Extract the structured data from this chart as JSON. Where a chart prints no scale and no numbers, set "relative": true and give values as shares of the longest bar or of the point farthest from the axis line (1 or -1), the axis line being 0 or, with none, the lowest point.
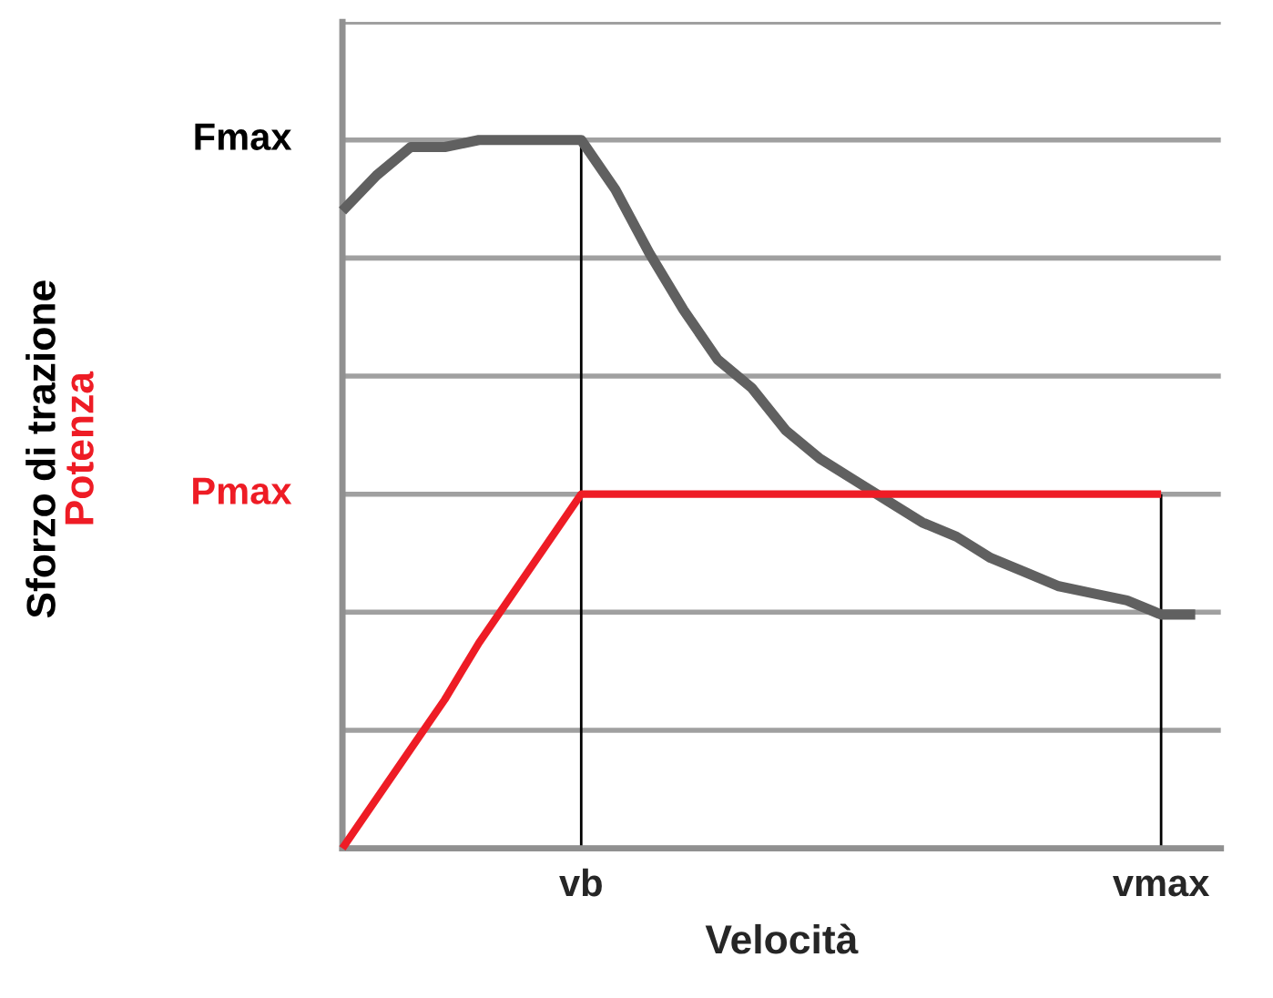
{
  "chart_data": {
    "type": "line",
    "relative": true,
    "xlabel": "Velocità",
    "categories": [
      null,
      null,
      null,
      null,
      null,
      null,
      null,
      "vb",
      null,
      null,
      null,
      null,
      null,
      null,
      null,
      null,
      null,
      null,
      null,
      null,
      null,
      null,
      null,
      null,
      "vmax",
      null
    ],
    "grid": true,
    "series": [
      {
        "color": "#606060",
        "values": [
          0.9,
          0.95,
          0.99,
          0.99,
          1.0,
          1.0,
          1.0,
          1.0,
          0.93,
          0.84,
          0.76,
          0.69,
          0.65,
          0.59,
          0.55,
          0.52,
          0.49,
          0.46,
          0.44,
          0.41,
          0.39,
          0.37,
          0.36,
          0.35,
          0.33,
          0.33
        ]
      },
      {
        "color": "#ee1c25",
        "values": [
          0,
          0.07,
          0.14,
          0.21,
          0.29,
          0.36,
          0.43,
          0.5,
          0.5,
          0.5,
          0.5,
          0.5,
          0.5,
          0.5,
          0.5,
          0.5,
          0.5,
          0.5,
          0.5,
          0.5,
          0.5,
          0.5,
          0.5,
          0.5,
          0.5,
          null
        ]
      }
    ],
    "annotations": [
      "Fmax",
      "Pmax",
      "Sforzo di trazione",
      "Potenza"
    ]
  }
}
